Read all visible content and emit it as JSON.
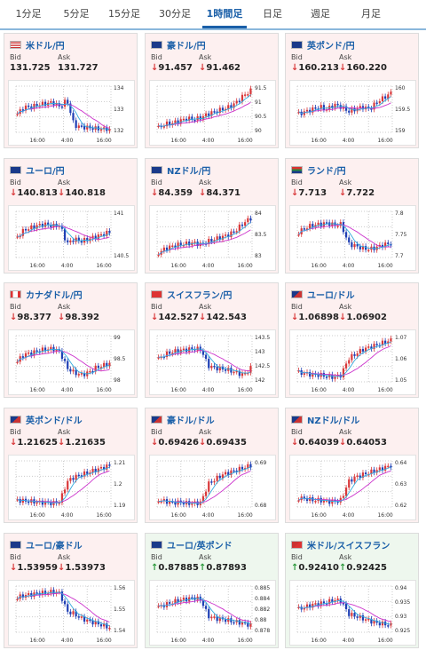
{
  "tabs": [
    "1分足",
    "5分足",
    "15分足",
    "30分足",
    "1時間足",
    "日足",
    "週足",
    "月足"
  ],
  "active_tab": "1時間足",
  "labels": {
    "bid": "Bid",
    "ask": "Ask"
  },
  "colors": {
    "accent": "#1a5fa8",
    "down": "#d9383a",
    "up": "#2e9a3e",
    "candle_up": "#d9383a",
    "candle_down": "#1f3fb5",
    "ma": "#cc33cc"
  },
  "pairs": [
    {
      "name": "米ドル/円",
      "flag": "us-flag-icon",
      "bid": "131.725",
      "ask": "131.727",
      "dir": "none",
      "ticks": [
        "134",
        "133",
        "132"
      ],
      "times": [
        "16:00",
        "4:00",
        "16:00"
      ],
      "shape": [
        0.4,
        0.55,
        0.55,
        0.6,
        0.62,
        0.65,
        0.55,
        0.7,
        0.15,
        0.12,
        0.1,
        0.08,
        0.07,
        0.05
      ]
    },
    {
      "name": "豪ドル/円",
      "flag": "au-flag-icon",
      "bid": "91.457",
      "ask": "91.462",
      "dir": "down",
      "ticks": [
        "91.5",
        "91",
        "90.5",
        "90"
      ],
      "times": [
        "16:00",
        "4:00",
        "16:00"
      ],
      "shape": [
        0.1,
        0.18,
        0.2,
        0.25,
        0.3,
        0.28,
        0.32,
        0.4,
        0.45,
        0.5,
        0.55,
        0.65,
        0.8,
        0.9
      ]
    },
    {
      "name": "英ポンド/円",
      "flag": "gb-flag-icon",
      "bid": "160.213",
      "ask": "160.220",
      "dir": "down",
      "ticks": [
        "160",
        "159.5",
        "159"
      ],
      "times": [
        "16:00",
        "4:00",
        "16:00"
      ],
      "shape": [
        0.4,
        0.45,
        0.5,
        0.55,
        0.5,
        0.6,
        0.55,
        0.45,
        0.5,
        0.55,
        0.5,
        0.65,
        0.75,
        0.85
      ]
    },
    {
      "name": "ユーロ/円",
      "flag": "eu-flag-icon",
      "bid": "140.813",
      "ask": "140.818",
      "dir": "down",
      "ticks": [
        "141",
        "140.5"
      ],
      "times": [
        "16:00",
        "4:00",
        "16:00"
      ],
      "shape": [
        0.45,
        0.6,
        0.65,
        0.7,
        0.72,
        0.68,
        0.7,
        0.3,
        0.4,
        0.35,
        0.4,
        0.45,
        0.5,
        0.55
      ]
    },
    {
      "name": "NZドル/円",
      "flag": "nz-flag-icon",
      "bid": "84.359",
      "ask": "84.371",
      "dir": "down",
      "ticks": [
        "84",
        "83.5",
        "83"
      ],
      "times": [
        "16:00",
        "4:00",
        "16:00"
      ],
      "shape": [
        0.1,
        0.2,
        0.25,
        0.28,
        0.3,
        0.32,
        0.28,
        0.35,
        0.4,
        0.45,
        0.5,
        0.6,
        0.75,
        0.85
      ]
    },
    {
      "name": "ランド/円",
      "flag": "za-flag-icon",
      "bid": "7.713",
      "ask": "7.722",
      "dir": "down",
      "ticks": [
        "7.8",
        "7.75",
        "7.7"
      ],
      "times": [
        "16:00",
        "4:00",
        "16:00"
      ],
      "shape": [
        0.55,
        0.65,
        0.7,
        0.72,
        0.75,
        0.7,
        0.72,
        0.3,
        0.25,
        0.2,
        0.18,
        0.22,
        0.28,
        0.3
      ]
    },
    {
      "name": "カナダドル/円",
      "flag": "ca-flag-icon",
      "bid": "98.377",
      "ask": "98.392",
      "dir": "down",
      "ticks": [
        "99",
        "98.5",
        "98"
      ],
      "times": [
        "16:00",
        "4:00",
        "16:00"
      ],
      "shape": [
        0.45,
        0.6,
        0.62,
        0.68,
        0.7,
        0.72,
        0.65,
        0.3,
        0.2,
        0.15,
        0.2,
        0.3,
        0.35,
        0.4
      ]
    },
    {
      "name": "スイスフラン/円",
      "flag": "ch-flag-icon",
      "bid": "142.527",
      "ask": "142.543",
      "dir": "down",
      "ticks": [
        "143.5",
        "143",
        "142.5",
        "142"
      ],
      "times": [
        "16:00",
        "4:00",
        "16:00"
      ],
      "shape": [
        0.5,
        0.6,
        0.65,
        0.68,
        0.7,
        0.72,
        0.7,
        0.35,
        0.3,
        0.28,
        0.25,
        0.2,
        0.15,
        0.3
      ]
    },
    {
      "name": "ユーロ/ドル",
      "flag": "eu-us-flag-icon",
      "bid": "1.06898",
      "ask": "1.06902",
      "dir": "down",
      "ticks": [
        "1.07",
        "1.06",
        "1.05"
      ],
      "times": [
        "16:00",
        "4:00",
        "16:00"
      ],
      "shape": [
        0.2,
        0.18,
        0.15,
        0.15,
        0.12,
        0.1,
        0.15,
        0.5,
        0.6,
        0.7,
        0.75,
        0.8,
        0.85,
        0.9
      ]
    },
    {
      "name": "英ポンド/ドル",
      "flag": "gb-us-flag-icon",
      "bid": "1.21625",
      "ask": "1.21635",
      "dir": "down",
      "ticks": [
        "1.21",
        "1.2",
        "1.19"
      ],
      "times": [
        "16:00",
        "4:00",
        "16:00"
      ],
      "shape": [
        0.15,
        0.13,
        0.12,
        0.1,
        0.1,
        0.08,
        0.12,
        0.55,
        0.65,
        0.7,
        0.75,
        0.8,
        0.85,
        0.9
      ]
    },
    {
      "name": "豪ドル/ドル",
      "flag": "au-us-flag-icon",
      "bid": "0.69426",
      "ask": "0.69435",
      "dir": "down",
      "ticks": [
        "0.69",
        "0.68"
      ],
      "times": [
        "16:00",
        "4:00",
        "16:00"
      ],
      "shape": [
        0.15,
        0.12,
        0.1,
        0.1,
        0.08,
        0.08,
        0.1,
        0.5,
        0.6,
        0.7,
        0.75,
        0.8,
        0.85,
        0.9
      ]
    },
    {
      "name": "NZドル/ドル",
      "flag": "nz-us-flag-icon",
      "bid": "0.64039",
      "ask": "0.64053",
      "dir": "down",
      "ticks": [
        "0.64",
        "0.63",
        "0.62"
      ],
      "times": [
        "16:00",
        "4:00",
        "16:00"
      ],
      "shape": [
        0.2,
        0.18,
        0.15,
        0.15,
        0.12,
        0.12,
        0.15,
        0.55,
        0.65,
        0.7,
        0.75,
        0.8,
        0.85,
        0.9
      ]
    },
    {
      "name": "ユーロ/豪ドル",
      "flag": "eu-au-flag-icon",
      "bid": "1.53959",
      "ask": "1.53973",
      "dir": "down",
      "ticks": [
        "1.56",
        "1.55",
        "1.54"
      ],
      "times": [
        "16:00",
        "4:00",
        "16:00"
      ],
      "shape": [
        0.75,
        0.8,
        0.82,
        0.85,
        0.85,
        0.88,
        0.85,
        0.45,
        0.4,
        0.3,
        0.25,
        0.2,
        0.15,
        0.1
      ]
    },
    {
      "name": "ユーロ/英ポンド",
      "flag": "eu-gb-flag-icon",
      "bid": "0.87885",
      "ask": "0.87893",
      "dir": "up",
      "ticks": [
        "0.885",
        "0.884",
        "0.882",
        "0.88",
        "0.878"
      ],
      "times": [
        "16:00",
        "4:00",
        "16:00"
      ],
      "shape": [
        0.55,
        0.6,
        0.65,
        0.7,
        0.72,
        0.75,
        0.7,
        0.35,
        0.3,
        0.28,
        0.25,
        0.22,
        0.2,
        0.15
      ]
    },
    {
      "name": "米ドル/スイスフラン",
      "flag": "us-ch-flag-icon",
      "bid": "0.92410",
      "ask": "0.92425",
      "dir": "up",
      "ticks": [
        "0.94",
        "0.935",
        "0.93",
        "0.925"
      ],
      "times": [
        "16:00",
        "4:00",
        "16:00"
      ],
      "shape": [
        0.5,
        0.55,
        0.6,
        0.62,
        0.65,
        0.7,
        0.68,
        0.4,
        0.35,
        0.3,
        0.25,
        0.2,
        0.18,
        0.15
      ]
    }
  ]
}
